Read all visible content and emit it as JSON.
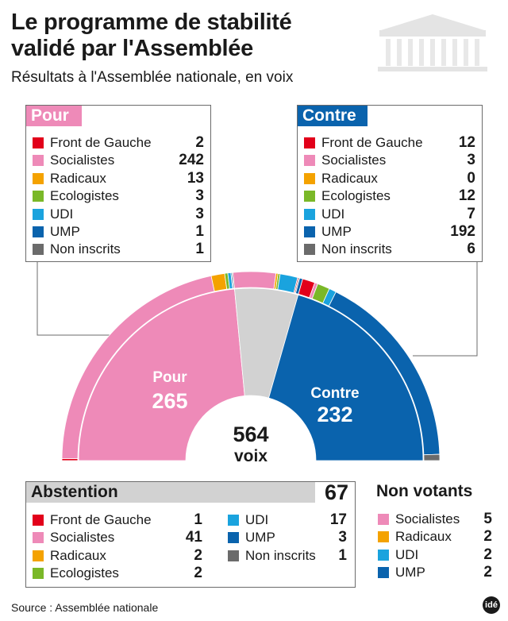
{
  "header": {
    "title": "Le programme de stabilité validé par l'Assemblée",
    "subtitle": "Résultats à l'Assemblée nationale, en voix"
  },
  "colors": {
    "front_de_gauche": "#e2001a",
    "socialistes": "#ee8ab8",
    "radicaux": "#f4a200",
    "ecologistes": "#7ab828",
    "udi": "#1aa3de",
    "ump": "#0a63ad",
    "non_inscrits": "#6b6b6b",
    "abstention": "#d2d2d2"
  },
  "icons": {
    "logo": "assemblee-building-icon",
    "brand": "ide-logo-icon"
  },
  "pour": {
    "label": "Pour",
    "rows": [
      {
        "label": "Front de Gauche",
        "value": "2",
        "color": "#e2001a"
      },
      {
        "label": "Socialistes",
        "value": "242",
        "color": "#ee8ab8"
      },
      {
        "label": "Radicaux",
        "value": "13",
        "color": "#f4a200"
      },
      {
        "label": "Ecologistes",
        "value": "3",
        "color": "#7ab828"
      },
      {
        "label": "UDI",
        "value": "3",
        "color": "#1aa3de"
      },
      {
        "label": "UMP",
        "value": "1",
        "color": "#0a63ad"
      },
      {
        "label": "Non inscrits",
        "value": "1",
        "color": "#6b6b6b"
      }
    ]
  },
  "contre": {
    "label": "Contre",
    "rows": [
      {
        "label": "Front de Gauche",
        "value": "12",
        "color": "#e2001a"
      },
      {
        "label": "Socialistes",
        "value": "3",
        "color": "#ee8ab8"
      },
      {
        "label": "Radicaux",
        "value": "0",
        "color": "#f4a200"
      },
      {
        "label": "Ecologistes",
        "value": "12",
        "color": "#7ab828"
      },
      {
        "label": "UDI",
        "value": "7",
        "color": "#1aa3de"
      },
      {
        "label": "UMP",
        "value": "192",
        "color": "#0a63ad"
      },
      {
        "label": "Non inscrits",
        "value": "6",
        "color": "#6b6b6b"
      }
    ]
  },
  "abstention": {
    "label": "Abstention",
    "total": "67",
    "rows": [
      {
        "label": "Front de Gauche",
        "value": "1",
        "color": "#e2001a"
      },
      {
        "label": "Socialistes",
        "value": "41",
        "color": "#ee8ab8"
      },
      {
        "label": "Radicaux",
        "value": "2",
        "color": "#f4a200"
      },
      {
        "label": "Ecologistes",
        "value": "2",
        "color": "#7ab828"
      },
      {
        "label": "UDI",
        "value": "17",
        "color": "#1aa3de"
      },
      {
        "label": "UMP",
        "value": "3",
        "color": "#0a63ad"
      },
      {
        "label": "Non inscrits",
        "value": "1",
        "color": "#6b6b6b"
      }
    ]
  },
  "non_votants": {
    "label": "Non votants",
    "rows": [
      {
        "label": "Socialistes",
        "value": "5",
        "color": "#ee8ab8"
      },
      {
        "label": "Radicaux",
        "value": "2",
        "color": "#f4a200"
      },
      {
        "label": "UDI",
        "value": "2",
        "color": "#1aa3de"
      },
      {
        "label": "UMP",
        "value": "2",
        "color": "#0a63ad"
      }
    ]
  },
  "chart_data": {
    "type": "pie",
    "shape": "hemicycle",
    "center_total": "564",
    "center_unit": "voix",
    "inner_ring": [
      {
        "name": "Pour",
        "value": 265,
        "label": "Pour",
        "value_label": "265",
        "color": "#ee8ab8"
      },
      {
        "name": "Abstention",
        "value": 67,
        "color": "#d2d2d2"
      },
      {
        "name": "Contre",
        "value": 232,
        "label": "Contre",
        "value_label": "232",
        "color": "#0a63ad"
      }
    ],
    "outer_ring": [
      {
        "group": "Pour",
        "name": "Front de Gauche",
        "value": 2,
        "color": "#e2001a"
      },
      {
        "group": "Pour",
        "name": "Socialistes",
        "value": 242,
        "color": "#ee8ab8"
      },
      {
        "group": "Pour",
        "name": "Radicaux",
        "value": 13,
        "color": "#f4a200"
      },
      {
        "group": "Pour",
        "name": "Ecologistes",
        "value": 3,
        "color": "#7ab828"
      },
      {
        "group": "Pour",
        "name": "UDI",
        "value": 3,
        "color": "#1aa3de"
      },
      {
        "group": "Pour",
        "name": "UMP",
        "value": 1,
        "color": "#0a63ad"
      },
      {
        "group": "Pour",
        "name": "Non inscrits",
        "value": 1,
        "color": "#6b6b6b"
      },
      {
        "group": "Abstention",
        "name": "Socialistes",
        "value": 41,
        "color": "#ee8ab8"
      },
      {
        "group": "Abstention",
        "name": "Radicaux",
        "value": 2,
        "color": "#f4a200"
      },
      {
        "group": "Abstention",
        "name": "Ecologistes",
        "value": 2,
        "color": "#7ab828"
      },
      {
        "group": "Abstention",
        "name": "UDI",
        "value": 17,
        "color": "#1aa3de"
      },
      {
        "group": "Abstention",
        "name": "Front de Gauche",
        "value": 1,
        "color": "#e2001a"
      },
      {
        "group": "Abstention",
        "name": "Non inscrits",
        "value": 1,
        "color": "#6b6b6b"
      },
      {
        "group": "Abstention",
        "name": "UMP",
        "value": 3,
        "color": "#0a63ad"
      },
      {
        "group": "Contre",
        "name": "Front de Gauche",
        "value": 12,
        "color": "#e2001a"
      },
      {
        "group": "Contre",
        "name": "Socialistes",
        "value": 3,
        "color": "#ee8ab8"
      },
      {
        "group": "Contre",
        "name": "Ecologistes",
        "value": 12,
        "color": "#7ab828"
      },
      {
        "group": "Contre",
        "name": "UDI",
        "value": 7,
        "color": "#1aa3de"
      },
      {
        "group": "Contre",
        "name": "UMP",
        "value": 192,
        "color": "#0a63ad"
      },
      {
        "group": "Contre",
        "name": "Non inscrits",
        "value": 6,
        "color": "#6b6b6b"
      }
    ]
  },
  "footer": {
    "source": "Source : Assemblée nationale",
    "brand": "idé"
  }
}
